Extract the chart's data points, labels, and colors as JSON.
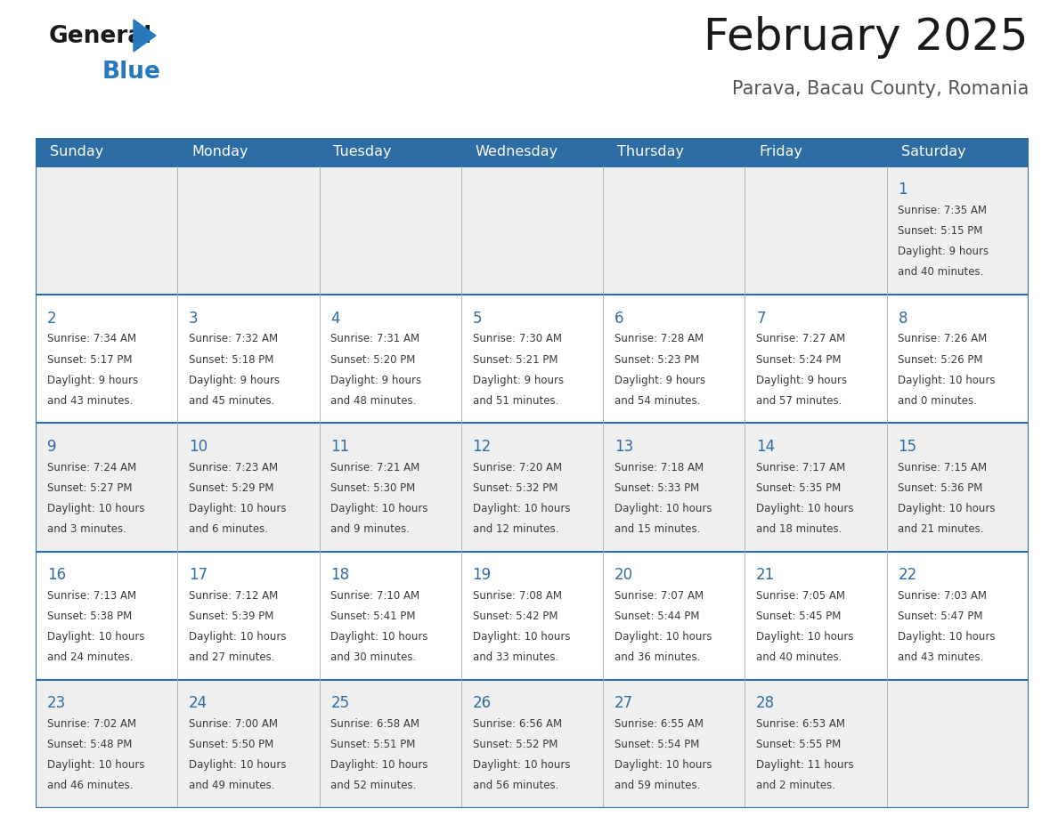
{
  "title": "February 2025",
  "subtitle": "Parava, Bacau County, Romania",
  "header_color": "#2E6DA4",
  "header_text_color": "#FFFFFF",
  "day_names": [
    "Sunday",
    "Monday",
    "Tuesday",
    "Wednesday",
    "Thursday",
    "Friday",
    "Saturday"
  ],
  "background_color": "#FFFFFF",
  "cell_bg_even": "#EFEFEF",
  "cell_bg_odd": "#FFFFFF",
  "border_color": "#2E6DA4",
  "day_number_color": "#2E6DA4",
  "text_color": "#3a3a3a",
  "calendar_data": [
    [
      null,
      null,
      null,
      null,
      null,
      null,
      {
        "day": 1,
        "sunrise": "7:35 AM",
        "sunset": "5:15 PM",
        "daylight": "9 hours\nand 40 minutes."
      }
    ],
    [
      {
        "day": 2,
        "sunrise": "7:34 AM",
        "sunset": "5:17 PM",
        "daylight": "9 hours\nand 43 minutes."
      },
      {
        "day": 3,
        "sunrise": "7:32 AM",
        "sunset": "5:18 PM",
        "daylight": "9 hours\nand 45 minutes."
      },
      {
        "day": 4,
        "sunrise": "7:31 AM",
        "sunset": "5:20 PM",
        "daylight": "9 hours\nand 48 minutes."
      },
      {
        "day": 5,
        "sunrise": "7:30 AM",
        "sunset": "5:21 PM",
        "daylight": "9 hours\nand 51 minutes."
      },
      {
        "day": 6,
        "sunrise": "7:28 AM",
        "sunset": "5:23 PM",
        "daylight": "9 hours\nand 54 minutes."
      },
      {
        "day": 7,
        "sunrise": "7:27 AM",
        "sunset": "5:24 PM",
        "daylight": "9 hours\nand 57 minutes."
      },
      {
        "day": 8,
        "sunrise": "7:26 AM",
        "sunset": "5:26 PM",
        "daylight": "10 hours\nand 0 minutes."
      }
    ],
    [
      {
        "day": 9,
        "sunrise": "7:24 AM",
        "sunset": "5:27 PM",
        "daylight": "10 hours\nand 3 minutes."
      },
      {
        "day": 10,
        "sunrise": "7:23 AM",
        "sunset": "5:29 PM",
        "daylight": "10 hours\nand 6 minutes."
      },
      {
        "day": 11,
        "sunrise": "7:21 AM",
        "sunset": "5:30 PM",
        "daylight": "10 hours\nand 9 minutes."
      },
      {
        "day": 12,
        "sunrise": "7:20 AM",
        "sunset": "5:32 PM",
        "daylight": "10 hours\nand 12 minutes."
      },
      {
        "day": 13,
        "sunrise": "7:18 AM",
        "sunset": "5:33 PM",
        "daylight": "10 hours\nand 15 minutes."
      },
      {
        "day": 14,
        "sunrise": "7:17 AM",
        "sunset": "5:35 PM",
        "daylight": "10 hours\nand 18 minutes."
      },
      {
        "day": 15,
        "sunrise": "7:15 AM",
        "sunset": "5:36 PM",
        "daylight": "10 hours\nand 21 minutes."
      }
    ],
    [
      {
        "day": 16,
        "sunrise": "7:13 AM",
        "sunset": "5:38 PM",
        "daylight": "10 hours\nand 24 minutes."
      },
      {
        "day": 17,
        "sunrise": "7:12 AM",
        "sunset": "5:39 PM",
        "daylight": "10 hours\nand 27 minutes."
      },
      {
        "day": 18,
        "sunrise": "7:10 AM",
        "sunset": "5:41 PM",
        "daylight": "10 hours\nand 30 minutes."
      },
      {
        "day": 19,
        "sunrise": "7:08 AM",
        "sunset": "5:42 PM",
        "daylight": "10 hours\nand 33 minutes."
      },
      {
        "day": 20,
        "sunrise": "7:07 AM",
        "sunset": "5:44 PM",
        "daylight": "10 hours\nand 36 minutes."
      },
      {
        "day": 21,
        "sunrise": "7:05 AM",
        "sunset": "5:45 PM",
        "daylight": "10 hours\nand 40 minutes."
      },
      {
        "day": 22,
        "sunrise": "7:03 AM",
        "sunset": "5:47 PM",
        "daylight": "10 hours\nand 43 minutes."
      }
    ],
    [
      {
        "day": 23,
        "sunrise": "7:02 AM",
        "sunset": "5:48 PM",
        "daylight": "10 hours\nand 46 minutes."
      },
      {
        "day": 24,
        "sunrise": "7:00 AM",
        "sunset": "5:50 PM",
        "daylight": "10 hours\nand 49 minutes."
      },
      {
        "day": 25,
        "sunrise": "6:58 AM",
        "sunset": "5:51 PM",
        "daylight": "10 hours\nand 52 minutes."
      },
      {
        "day": 26,
        "sunrise": "6:56 AM",
        "sunset": "5:52 PM",
        "daylight": "10 hours\nand 56 minutes."
      },
      {
        "day": 27,
        "sunrise": "6:55 AM",
        "sunset": "5:54 PM",
        "daylight": "10 hours\nand 59 minutes."
      },
      {
        "day": 28,
        "sunrise": "6:53 AM",
        "sunset": "5:55 PM",
        "daylight": "11 hours\nand 2 minutes."
      },
      null
    ]
  ]
}
